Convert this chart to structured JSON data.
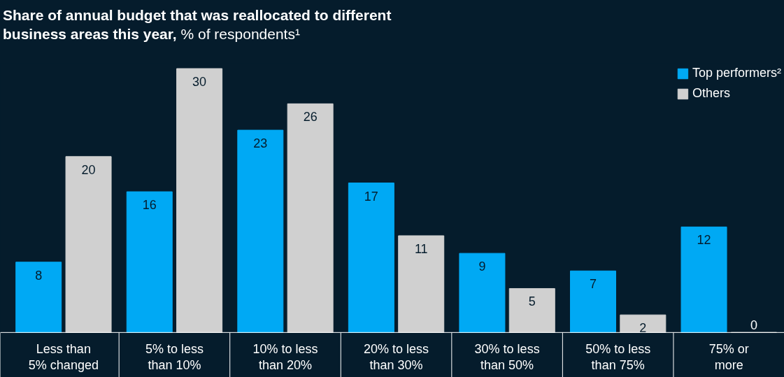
{
  "chart_data": {
    "type": "bar",
    "title": "Share of annual budget that was reallocated to different business areas this year,",
    "subtitle": "% of respondents¹",
    "categories": [
      "Less than 5% changed",
      "5% to less than 10%",
      "10% to less than 20%",
      "20% to less than 30%",
      "30% to less than 50%",
      "50% to less than 75%",
      "75% or more"
    ],
    "series": [
      {
        "name": "Top performers²",
        "color": "#00a9f4",
        "values": [
          8,
          16,
          23,
          17,
          9,
          7,
          12
        ]
      },
      {
        "name": "Others",
        "color": "#d0d0d0",
        "values": [
          20,
          30,
          26,
          11,
          5,
          2,
          0
        ]
      }
    ],
    "data_labels": true,
    "legend": "top right"
  }
}
